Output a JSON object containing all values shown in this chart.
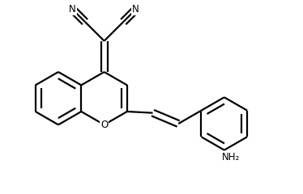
{
  "background": "#ffffff",
  "line_color": "#000000",
  "line_width": 1.6,
  "dbo": 0.012,
  "font_size": 8.5,
  "fig_width": 3.74,
  "fig_height": 2.4,
  "xlim": [
    0.0,
    1.0
  ],
  "ylim": [
    0.0,
    0.72
  ]
}
